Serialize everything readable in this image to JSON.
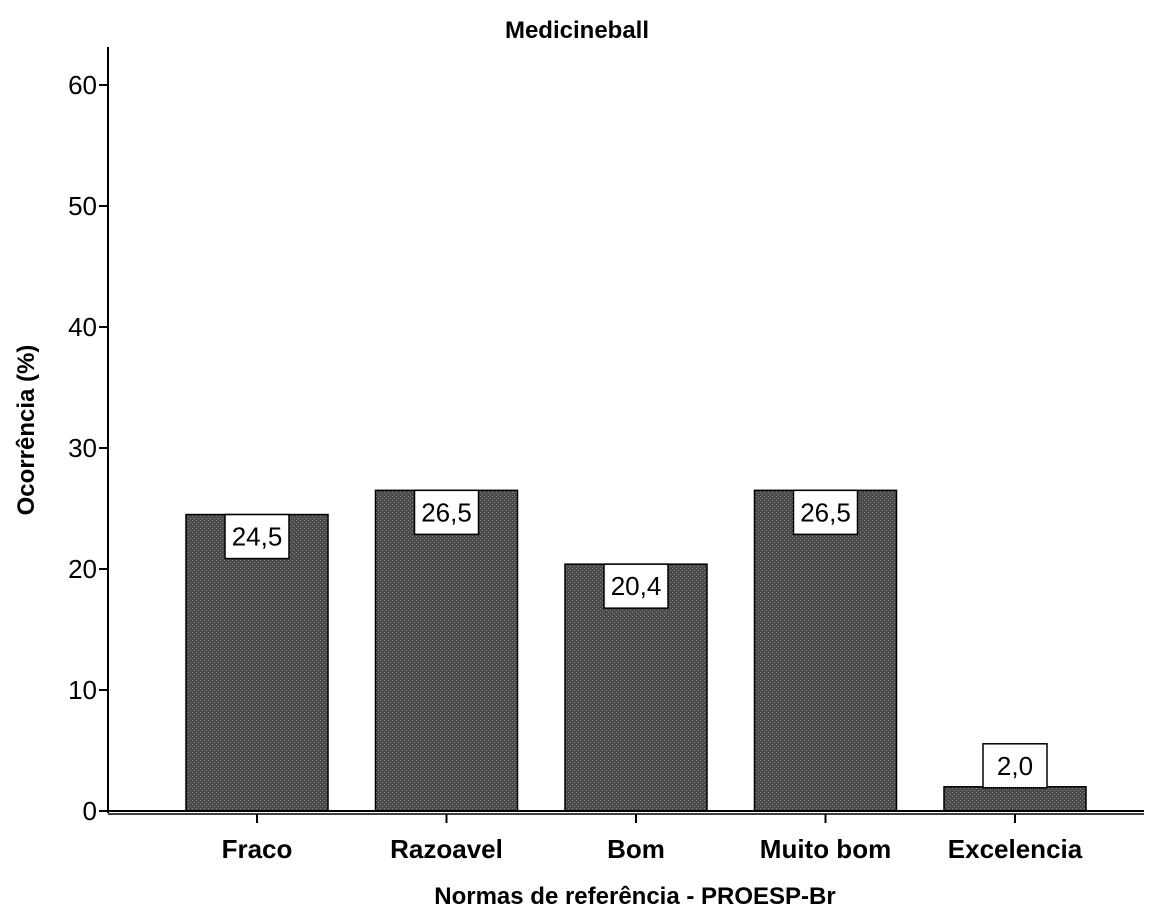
{
  "chart_data": {
    "type": "bar",
    "title": "Medicineball",
    "xlabel": "Normas de referência - PROESP-Br",
    "ylabel": "Ocorrência (%)",
    "categories": [
      "Fraco",
      "Razoavel",
      "Bom",
      "Muito bom",
      "Excelencia"
    ],
    "values": [
      24.5,
      26.5,
      20.4,
      26.5,
      2.0
    ],
    "data_labels": [
      "24,5",
      "26,5",
      "20,4",
      "26,5",
      "2,0"
    ],
    "yticks": [
      0,
      10,
      20,
      30,
      40,
      50,
      60
    ],
    "ylim": [
      0,
      64
    ],
    "grid": false,
    "legend": "none",
    "bar_color": "#555555"
  }
}
